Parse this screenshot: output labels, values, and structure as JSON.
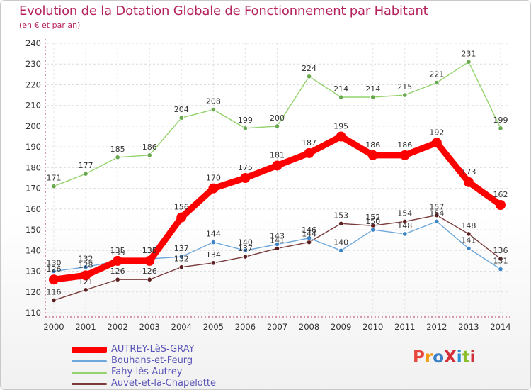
{
  "title": "Evolution de la Dotation Globale de Fonctionnement par Habitant",
  "subtitle": "(en € et par an)",
  "logo": {
    "text": "ProXiti",
    "letters": [
      "P",
      "r",
      "o",
      "X",
      "i",
      "t",
      "i"
    ],
    "letter_colors": [
      "#e8453c",
      "#f39c12",
      "#3b7fc4",
      "#d4303c",
      "#2a8fd4",
      "#8cbd2a",
      "#d4303c"
    ]
  },
  "chart_data": {
    "type": "line",
    "title": "Evolution de la Dotation Globale de Fonctionnement par Habitant",
    "subtitle": "(en € et par an)",
    "xlabel": "",
    "ylabel": "",
    "x": [
      "2000",
      "2001",
      "2002",
      "2003",
      "2004",
      "2005",
      "2006",
      "2007",
      "2008",
      "2009",
      "2010",
      "2011",
      "2012",
      "2013",
      "2014"
    ],
    "ylim": [
      110,
      240
    ],
    "yticks": [
      110,
      120,
      130,
      140,
      150,
      160,
      170,
      180,
      190,
      200,
      210,
      220,
      230,
      240
    ],
    "grid": true,
    "legend_position": "bottom-left",
    "series": [
      {
        "name": "AUTREY-LèS-GRAY",
        "color": "#ff0000",
        "marker_color": "#ff0000",
        "emphasis": "thick",
        "values": [
          126,
          128,
          135,
          135,
          156,
          170,
          175,
          181,
          187,
          195,
          186,
          186,
          192,
          173,
          162
        ]
      },
      {
        "name": "Bouhans-et-Feurg",
        "color": "#6fa8dc",
        "marker_color": "#3d85c6",
        "emphasis": "normal",
        "values": [
          130,
          132,
          135,
          136,
          137,
          144,
          140,
          143,
          146,
          140,
          150,
          148,
          154,
          141,
          131
        ]
      },
      {
        "name": "Fahy-lès-Autrey",
        "color": "#93d36b",
        "marker_color": "#6aa84f",
        "emphasis": "normal",
        "values": [
          171,
          177,
          185,
          186,
          204,
          208,
          199,
          200,
          224,
          214,
          214,
          215,
          221,
          231,
          199
        ]
      },
      {
        "name": "Auvet-et-la-Chapelotte",
        "color": "#7a3b3b",
        "marker_color": "#5c1f1f",
        "emphasis": "normal",
        "values": [
          116,
          121,
          126,
          126,
          132,
          134,
          137,
          141,
          144,
          153,
          152,
          154,
          157,
          148,
          136
        ]
      }
    ]
  }
}
